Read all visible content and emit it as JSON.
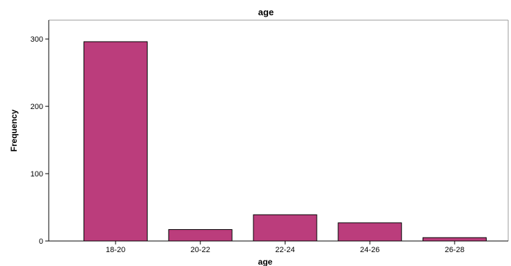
{
  "chart_data": {
    "type": "bar",
    "title": "age",
    "xlabel": "age",
    "ylabel": "Frequency",
    "categories": [
      "18-20",
      "20-22",
      "22-24",
      "24-26",
      "26-28"
    ],
    "values": [
      296,
      17,
      39,
      27,
      5
    ],
    "ylim": [
      0,
      328
    ],
    "yticks": [
      0,
      100,
      200,
      300
    ],
    "grid": false,
    "bar_color": "#bb3d7c"
  }
}
